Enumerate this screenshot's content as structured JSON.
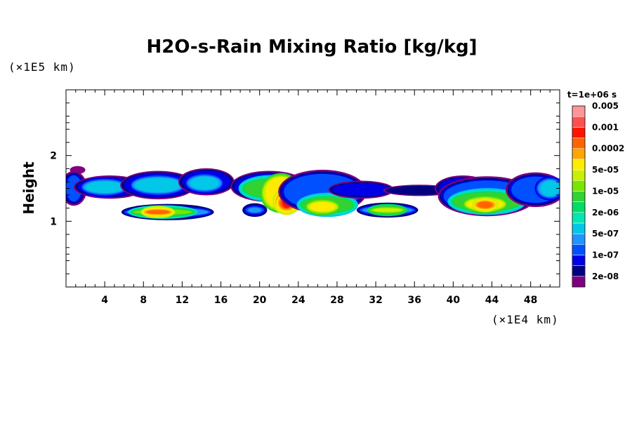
{
  "chart_data": {
    "type": "heatmap",
    "title": "H2O-s-Rain Mixing Ratio [kg/kg]",
    "ylabel": "Height",
    "xlabel": "",
    "x_unit_label": "(×1E4 km)",
    "y_unit_label": "(×1E5 km)",
    "time_label": "t=1e+06 s",
    "xlim": [
      0,
      51
    ],
    "ylim": [
      0,
      3
    ],
    "x_ticks": [
      4,
      8,
      12,
      16,
      20,
      24,
      28,
      32,
      36,
      40,
      44,
      48
    ],
    "y_ticks": [
      1,
      2
    ],
    "grid": false,
    "colorbar": {
      "colors": [
        "#800080",
        "#000080",
        "#0000e6",
        "#0050ff",
        "#1e96ff",
        "#00c8e6",
        "#00e6b4",
        "#00dc64",
        "#32d232",
        "#78e600",
        "#c8f000",
        "#ffeb00",
        "#ffa500",
        "#ff6400",
        "#ff1400",
        "#ff5050",
        "#ff9696"
      ],
      "labels": [
        "2e-08",
        "1e-07",
        "5e-07",
        "2e-06",
        "1e-05",
        "5e-05",
        "0.0002",
        "0.001",
        "0.005"
      ]
    },
    "cells": [
      {
        "x": 1.2,
        "y": 1.78,
        "rx": 0.8,
        "ry": 0.06,
        "level": 0
      },
      {
        "x": 0.8,
        "y": 1.5,
        "rx": 0.8,
        "ry": 0.2,
        "level": 3
      },
      {
        "x": 4.5,
        "y": 1.52,
        "rx": 3.3,
        "ry": 0.14,
        "level": 2
      },
      {
        "x": 4.0,
        "y": 1.52,
        "rx": 2.0,
        "ry": 0.09,
        "level": 5
      },
      {
        "x": 9.5,
        "y": 1.55,
        "rx": 3.5,
        "ry": 0.18,
        "level": 2
      },
      {
        "x": 9.5,
        "y": 1.55,
        "rx": 2.4,
        "ry": 0.11,
        "level": 5
      },
      {
        "x": 14.5,
        "y": 1.6,
        "rx": 2.5,
        "ry": 0.17,
        "level": 2
      },
      {
        "x": 14.3,
        "y": 1.58,
        "rx": 1.5,
        "ry": 0.1,
        "level": 5
      },
      {
        "x": 10.5,
        "y": 1.14,
        "rx": 4.2,
        "ry": 0.06,
        "level": 4
      },
      {
        "x": 10.0,
        "y": 1.14,
        "rx": 3.0,
        "ry": 0.04,
        "level": 9
      },
      {
        "x": 9.5,
        "y": 1.14,
        "rx": 1.2,
        "ry": 0.03,
        "level": 13
      },
      {
        "x": 19.5,
        "y": 1.17,
        "rx": 0.7,
        "ry": 0.04,
        "level": 4
      },
      {
        "x": 21.0,
        "y": 1.53,
        "rx": 3.6,
        "ry": 0.2,
        "level": 2
      },
      {
        "x": 21.2,
        "y": 1.5,
        "rx": 2.8,
        "ry": 0.14,
        "level": 8
      },
      {
        "x": 22.2,
        "y": 1.43,
        "rx": 1.6,
        "ry": 0.24,
        "level": 11
      },
      {
        "x": 22.8,
        "y": 1.3,
        "rx": 0.9,
        "ry": 0.14,
        "level": 13
      },
      {
        "x": 22.8,
        "y": 1.28,
        "rx": 0.5,
        "ry": 0.08,
        "level": 14
      },
      {
        "x": 26.5,
        "y": 1.45,
        "rx": 4.0,
        "ry": 0.27,
        "level": 3
      },
      {
        "x": 27.0,
        "y": 1.25,
        "rx": 2.6,
        "ry": 0.12,
        "level": 8
      },
      {
        "x": 26.5,
        "y": 1.22,
        "rx": 1.3,
        "ry": 0.07,
        "level": 11
      },
      {
        "x": 30.5,
        "y": 1.48,
        "rx": 3.0,
        "ry": 0.1,
        "level": 2
      },
      {
        "x": 33.2,
        "y": 1.17,
        "rx": 2.6,
        "ry": 0.05,
        "level": 4
      },
      {
        "x": 33.2,
        "y": 1.17,
        "rx": 1.5,
        "ry": 0.03,
        "level": 10
      },
      {
        "x": 36.5,
        "y": 1.47,
        "rx": 3.5,
        "ry": 0.07,
        "level": 1
      },
      {
        "x": 41.0,
        "y": 1.5,
        "rx": 2.5,
        "ry": 0.16,
        "level": 2
      },
      {
        "x": 43.5,
        "y": 1.38,
        "rx": 4.5,
        "ry": 0.24,
        "level": 3
      },
      {
        "x": 43.5,
        "y": 1.3,
        "rx": 3.5,
        "ry": 0.14,
        "level": 8
      },
      {
        "x": 43.3,
        "y": 1.26,
        "rx": 1.8,
        "ry": 0.08,
        "level": 11
      },
      {
        "x": 43.3,
        "y": 1.25,
        "rx": 0.8,
        "ry": 0.05,
        "level": 13
      },
      {
        "x": 48.5,
        "y": 1.48,
        "rx": 2.5,
        "ry": 0.2,
        "level": 3
      },
      {
        "x": 50.0,
        "y": 1.5,
        "rx": 1.0,
        "ry": 0.12,
        "level": 5
      }
    ]
  }
}
